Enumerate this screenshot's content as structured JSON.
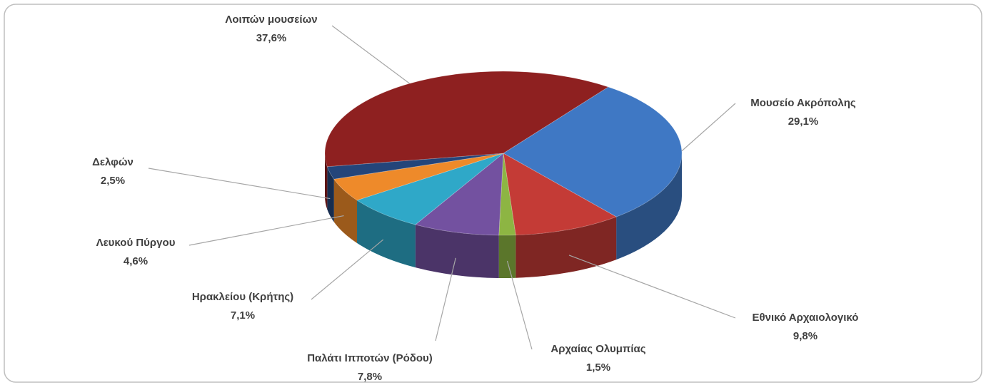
{
  "chart_data": {
    "type": "pie",
    "categories": [
      "Μουσείο Ακρόπολης",
      "Εθνικό Αρχαιολογικό",
      "Αρχαίας Ολυμπίας",
      "Παλάτι Ιπποτών (Ρόδου)",
      "Ηρακλείου (Κρήτης)",
      "Λευκού Πύργου",
      "Δελφών",
      "Λοιπών μουσείων"
    ],
    "values": [
      29.1,
      9.8,
      1.5,
      7.8,
      7.1,
      4.6,
      2.5,
      37.6
    ],
    "value_labels": [
      "29,1%",
      "9,8%",
      "1,5%",
      "7,8%",
      "7,1%",
      "4,6%",
      "2,5%",
      "37,6%"
    ],
    "colors": [
      "#3f78c4",
      "#c43b36",
      "#8db543",
      "#7351a0",
      "#2fa8c8",
      "#ee8a2a",
      "#24457a",
      "#8e2020"
    ]
  }
}
